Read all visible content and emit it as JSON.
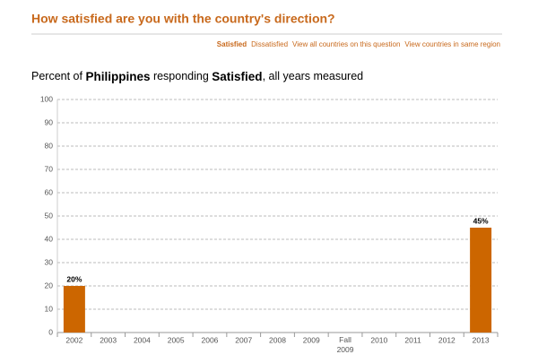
{
  "title": "How satisfied are you with the country's direction?",
  "nav": [
    "Satisfied",
    "Dissatisfied",
    "View all countries on this question",
    "View countries in same region"
  ],
  "chart_data": {
    "type": "bar",
    "subtitle_parts": [
      "Percent of ",
      "Philippines",
      " responding ",
      "Satisfied",
      ", all years measured"
    ],
    "categories": [
      "2002",
      "2003",
      "2004",
      "2005",
      "2006",
      "2007",
      "2008",
      "2009",
      "Fall 2009",
      "2010",
      "2011",
      "2012",
      "2013"
    ],
    "values": [
      20,
      null,
      null,
      null,
      null,
      null,
      null,
      null,
      null,
      null,
      null,
      null,
      45
    ],
    "value_labels": [
      "20%",
      null,
      null,
      null,
      null,
      null,
      null,
      null,
      null,
      null,
      null,
      null,
      "45%"
    ],
    "color": "#cc6600",
    "ylim": [
      0,
      100
    ],
    "yticks": [
      0,
      10,
      20,
      30,
      40,
      50,
      60,
      70,
      80,
      90,
      100
    ],
    "grid": true
  }
}
